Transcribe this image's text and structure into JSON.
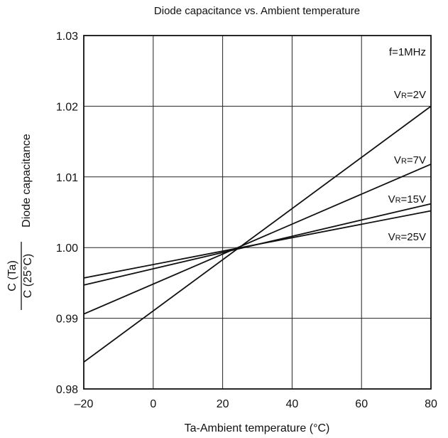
{
  "chart_data": {
    "type": "line",
    "title": "Diode capacitance vs. Ambient temperature",
    "xlabel": "Ta-Ambient temperature (°C)",
    "ylabel": {
      "main": "Diode capacitance",
      "numerator": "C (Ta)",
      "denominator": "C (25°C)"
    },
    "xlim": [
      -20,
      80
    ],
    "ylim": [
      0.98,
      1.03
    ],
    "x_ticks": [
      -20,
      0,
      20,
      40,
      60,
      80
    ],
    "x_tick_labels": [
      "–20",
      "0",
      "20",
      "40",
      "60",
      "80"
    ],
    "y_ticks": [
      0.98,
      0.99,
      1.0,
      1.01,
      1.02,
      1.03
    ],
    "y_tick_labels": [
      "0.98",
      "0.99",
      "1.00",
      "1.01",
      "1.02",
      "1.03"
    ],
    "grid": true,
    "legend": "none",
    "annotations": [
      {
        "text": "f=1MHz"
      }
    ],
    "series": [
      {
        "name": "VR=2V",
        "label_main": "V",
        "label_sub": "R",
        "label_rest": "=2V",
        "x": [
          -20,
          80
        ],
        "y": [
          0.9838,
          1.02
        ]
      },
      {
        "name": "VR=7V",
        "label_main": "V",
        "label_sub": "R",
        "label_rest": "=7V",
        "x": [
          -20,
          80
        ],
        "y": [
          0.9906,
          1.0118
        ]
      },
      {
        "name": "VR=15V",
        "label_main": "V",
        "label_sub": "R",
        "label_rest": "=15V",
        "x": [
          -20,
          80
        ],
        "y": [
          0.9947,
          1.0062
        ]
      },
      {
        "name": "VR=25V",
        "label_main": "V",
        "label_sub": "R",
        "label_rest": "=25V",
        "x": [
          -20,
          80
        ],
        "y": [
          0.9957,
          1.0052
        ]
      }
    ],
    "line_color": "#111111"
  }
}
